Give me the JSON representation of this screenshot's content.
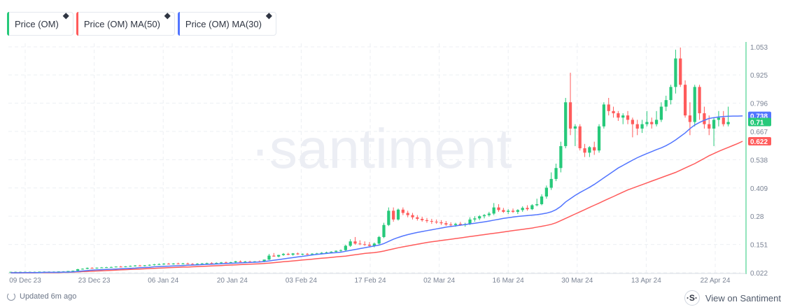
{
  "legend": [
    {
      "label": "Price (OM)",
      "color": "#26c97a"
    },
    {
      "label": "Price (OM) MA(50)",
      "color": "#ff5b5b"
    },
    {
      "label": "Price (OM) MA(30)",
      "color": "#5275ff"
    }
  ],
  "watermark": "·santiment",
  "footer": {
    "updated": "Updated 6m ago",
    "view_on": "View on Santiment",
    "logo": "·S·"
  },
  "chart_data": {
    "type": "candlestick",
    "xlabels": [
      "09 Dec 23",
      "23 Dec 23",
      "06 Jan 24",
      "20 Jan 24",
      "03 Feb 24",
      "17 Feb 24",
      "02 Mar 24",
      "16 Mar 24",
      "30 Mar 24",
      "13 Apr 24",
      "22 Apr 24"
    ],
    "ytick_labels": [
      "1.053",
      "0.925",
      "0.796",
      "0.667",
      "0.538",
      "0.409",
      "0.28",
      "0.151",
      "0.022"
    ],
    "ylim": [
      0.022,
      1.053
    ],
    "last_values": {
      "ma30": "0.738",
      "price": "0.71",
      "ma50": "0.622"
    },
    "colors": {
      "up": "#26c97a",
      "down": "#ff5b5b",
      "ma30": "#5275ff",
      "ma50": "#ff5b5b",
      "axis": "#26c97a"
    },
    "candles": [
      [
        0.025,
        0.026,
        0.024,
        0.026
      ],
      [
        0.026,
        0.027,
        0.025,
        0.026
      ],
      [
        0.026,
        0.027,
        0.025,
        0.026
      ],
      [
        0.026,
        0.027,
        0.025,
        0.026
      ],
      [
        0.026,
        0.027,
        0.025,
        0.026
      ],
      [
        0.026,
        0.027,
        0.025,
        0.026
      ],
      [
        0.026,
        0.027,
        0.025,
        0.027
      ],
      [
        0.027,
        0.028,
        0.026,
        0.027
      ],
      [
        0.027,
        0.028,
        0.026,
        0.027
      ],
      [
        0.027,
        0.028,
        0.026,
        0.027
      ],
      [
        0.027,
        0.028,
        0.026,
        0.028
      ],
      [
        0.028,
        0.029,
        0.027,
        0.028
      ],
      [
        0.028,
        0.03,
        0.027,
        0.03
      ],
      [
        0.03,
        0.032,
        0.029,
        0.031
      ],
      [
        0.031,
        0.04,
        0.03,
        0.038
      ],
      [
        0.038,
        0.042,
        0.036,
        0.04
      ],
      [
        0.04,
        0.046,
        0.038,
        0.044
      ],
      [
        0.044,
        0.047,
        0.041,
        0.043
      ],
      [
        0.043,
        0.046,
        0.04,
        0.045
      ],
      [
        0.045,
        0.048,
        0.043,
        0.046
      ],
      [
        0.046,
        0.049,
        0.044,
        0.047
      ],
      [
        0.047,
        0.05,
        0.045,
        0.048
      ],
      [
        0.048,
        0.051,
        0.046,
        0.05
      ],
      [
        0.05,
        0.053,
        0.047,
        0.049
      ],
      [
        0.049,
        0.052,
        0.047,
        0.051
      ],
      [
        0.051,
        0.055,
        0.049,
        0.053
      ],
      [
        0.053,
        0.057,
        0.05,
        0.055
      ],
      [
        0.055,
        0.058,
        0.052,
        0.054
      ],
      [
        0.054,
        0.057,
        0.051,
        0.056
      ],
      [
        0.056,
        0.06,
        0.053,
        0.058
      ],
      [
        0.058,
        0.062,
        0.055,
        0.06
      ],
      [
        0.06,
        0.065,
        0.057,
        0.061
      ],
      [
        0.061,
        0.066,
        0.058,
        0.063
      ],
      [
        0.063,
        0.067,
        0.06,
        0.062
      ],
      [
        0.062,
        0.066,
        0.059,
        0.064
      ],
      [
        0.064,
        0.068,
        0.061,
        0.063
      ],
      [
        0.063,
        0.067,
        0.06,
        0.064
      ],
      [
        0.064,
        0.068,
        0.061,
        0.062
      ],
      [
        0.062,
        0.066,
        0.059,
        0.061
      ],
      [
        0.061,
        0.066,
        0.058,
        0.063
      ],
      [
        0.063,
        0.067,
        0.06,
        0.064
      ],
      [
        0.064,
        0.068,
        0.061,
        0.066
      ],
      [
        0.066,
        0.07,
        0.063,
        0.065
      ],
      [
        0.065,
        0.069,
        0.062,
        0.067
      ],
      [
        0.067,
        0.071,
        0.064,
        0.069
      ],
      [
        0.069,
        0.073,
        0.066,
        0.068
      ],
      [
        0.068,
        0.072,
        0.065,
        0.07
      ],
      [
        0.07,
        0.076,
        0.067,
        0.074
      ],
      [
        0.074,
        0.078,
        0.07,
        0.072
      ],
      [
        0.072,
        0.076,
        0.069,
        0.073
      ],
      [
        0.073,
        0.077,
        0.07,
        0.071
      ],
      [
        0.071,
        0.075,
        0.068,
        0.074
      ],
      [
        0.074,
        0.078,
        0.071,
        0.072
      ],
      [
        0.072,
        0.08,
        0.07,
        0.082
      ],
      [
        0.082,
        0.108,
        0.08,
        0.1
      ],
      [
        0.1,
        0.112,
        0.095,
        0.096
      ],
      [
        0.096,
        0.104,
        0.092,
        0.103
      ],
      [
        0.103,
        0.112,
        0.099,
        0.108
      ],
      [
        0.108,
        0.113,
        0.102,
        0.104
      ],
      [
        0.104,
        0.112,
        0.1,
        0.11
      ],
      [
        0.11,
        0.114,
        0.104,
        0.106
      ],
      [
        0.106,
        0.11,
        0.102,
        0.108
      ],
      [
        0.108,
        0.112,
        0.103,
        0.107
      ],
      [
        0.107,
        0.111,
        0.103,
        0.109
      ],
      [
        0.109,
        0.113,
        0.105,
        0.11
      ],
      [
        0.11,
        0.116,
        0.106,
        0.113
      ],
      [
        0.113,
        0.118,
        0.108,
        0.115
      ],
      [
        0.115,
        0.12,
        0.11,
        0.118
      ],
      [
        0.118,
        0.124,
        0.113,
        0.122
      ],
      [
        0.122,
        0.128,
        0.117,
        0.125
      ],
      [
        0.125,
        0.15,
        0.12,
        0.145
      ],
      [
        0.145,
        0.175,
        0.14,
        0.165
      ],
      [
        0.165,
        0.185,
        0.15,
        0.155
      ],
      [
        0.155,
        0.17,
        0.148,
        0.152
      ],
      [
        0.152,
        0.165,
        0.145,
        0.15
      ],
      [
        0.15,
        0.162,
        0.14,
        0.145
      ],
      [
        0.145,
        0.16,
        0.138,
        0.155
      ],
      [
        0.155,
        0.19,
        0.15,
        0.185
      ],
      [
        0.185,
        0.25,
        0.18,
        0.24
      ],
      [
        0.24,
        0.32,
        0.235,
        0.305
      ],
      [
        0.305,
        0.32,
        0.255,
        0.265
      ],
      [
        0.265,
        0.315,
        0.26,
        0.31
      ],
      [
        0.31,
        0.32,
        0.285,
        0.295
      ],
      [
        0.295,
        0.305,
        0.275,
        0.285
      ],
      [
        0.285,
        0.295,
        0.265,
        0.275
      ],
      [
        0.275,
        0.285,
        0.26,
        0.268
      ],
      [
        0.268,
        0.278,
        0.255,
        0.262
      ],
      [
        0.262,
        0.272,
        0.25,
        0.258
      ],
      [
        0.258,
        0.268,
        0.245,
        0.255
      ],
      [
        0.255,
        0.265,
        0.245,
        0.252
      ],
      [
        0.252,
        0.262,
        0.24,
        0.248
      ],
      [
        0.248,
        0.258,
        0.236,
        0.242
      ],
      [
        0.242,
        0.252,
        0.234,
        0.24
      ],
      [
        0.24,
        0.25,
        0.232,
        0.245
      ],
      [
        0.245,
        0.254,
        0.236,
        0.24
      ],
      [
        0.24,
        0.25,
        0.232,
        0.244
      ],
      [
        0.244,
        0.275,
        0.24,
        0.265
      ],
      [
        0.265,
        0.28,
        0.255,
        0.27
      ],
      [
        0.27,
        0.285,
        0.262,
        0.28
      ],
      [
        0.28,
        0.29,
        0.27,
        0.285
      ],
      [
        0.285,
        0.3,
        0.278,
        0.292
      ],
      [
        0.292,
        0.34,
        0.285,
        0.32
      ],
      [
        0.32,
        0.335,
        0.3,
        0.308
      ],
      [
        0.308,
        0.318,
        0.295,
        0.3
      ],
      [
        0.3,
        0.312,
        0.29,
        0.305
      ],
      [
        0.305,
        0.315,
        0.295,
        0.3
      ],
      [
        0.3,
        0.312,
        0.29,
        0.308
      ],
      [
        0.308,
        0.325,
        0.3,
        0.318
      ],
      [
        0.318,
        0.33,
        0.305,
        0.312
      ],
      [
        0.312,
        0.335,
        0.308,
        0.33
      ],
      [
        0.33,
        0.36,
        0.325,
        0.335
      ],
      [
        0.335,
        0.38,
        0.33,
        0.37
      ],
      [
        0.37,
        0.42,
        0.36,
        0.41
      ],
      [
        0.41,
        0.48,
        0.4,
        0.45
      ],
      [
        0.45,
        0.52,
        0.44,
        0.5
      ],
      [
        0.5,
        0.62,
        0.48,
        0.6
      ],
      [
        0.6,
        0.82,
        0.59,
        0.8
      ],
      [
        0.8,
        0.935,
        0.65,
        0.68
      ],
      [
        0.68,
        0.7,
        0.6,
        0.69
      ],
      [
        0.69,
        0.7,
        0.58,
        0.59
      ],
      [
        0.59,
        0.61,
        0.55,
        0.57
      ],
      [
        0.57,
        0.6,
        0.55,
        0.595
      ],
      [
        0.595,
        0.62,
        0.56,
        0.58
      ],
      [
        0.58,
        0.7,
        0.57,
        0.69
      ],
      [
        0.69,
        0.8,
        0.68,
        0.79
      ],
      [
        0.79,
        0.82,
        0.74,
        0.76
      ],
      [
        0.76,
        0.78,
        0.73,
        0.75
      ],
      [
        0.75,
        0.76,
        0.715,
        0.73
      ],
      [
        0.73,
        0.75,
        0.7,
        0.74
      ],
      [
        0.74,
        0.76,
        0.7,
        0.72
      ],
      [
        0.72,
        0.73,
        0.64,
        0.7
      ],
      [
        0.7,
        0.72,
        0.65,
        0.68
      ],
      [
        0.68,
        0.72,
        0.66,
        0.7
      ],
      [
        0.7,
        0.76,
        0.69,
        0.71
      ],
      [
        0.71,
        0.73,
        0.68,
        0.7
      ],
      [
        0.7,
        0.76,
        0.69,
        0.72
      ],
      [
        0.72,
        0.8,
        0.71,
        0.78
      ],
      [
        0.78,
        0.83,
        0.76,
        0.81
      ],
      [
        0.81,
        0.88,
        0.79,
        0.87
      ],
      [
        0.87,
        1.04,
        0.84,
        1.0
      ],
      [
        1.0,
        1.05,
        0.87,
        0.88
      ],
      [
        0.88,
        0.9,
        0.73,
        0.74
      ],
      [
        0.74,
        0.8,
        0.65,
        0.71
      ],
      [
        0.71,
        0.88,
        0.69,
        0.87
      ],
      [
        0.87,
        0.88,
        0.72,
        0.75
      ],
      [
        0.75,
        0.78,
        0.68,
        0.7
      ],
      [
        0.7,
        0.74,
        0.65,
        0.68
      ],
      [
        0.68,
        0.73,
        0.6,
        0.72
      ],
      [
        0.72,
        0.76,
        0.69,
        0.73
      ],
      [
        0.73,
        0.76,
        0.69,
        0.7
      ],
      [
        0.7,
        0.78,
        0.69,
        0.71
      ]
    ],
    "ma50": [
      0.022,
      0.022,
      0.022,
      0.022,
      0.022,
      0.022,
      0.023,
      0.023,
      0.023,
      0.023,
      0.023,
      0.024,
      0.024,
      0.025,
      0.026,
      0.027,
      0.028,
      0.029,
      0.03,
      0.031,
      0.032,
      0.033,
      0.034,
      0.035,
      0.036,
      0.037,
      0.038,
      0.039,
      0.04,
      0.041,
      0.042,
      0.043,
      0.044,
      0.045,
      0.046,
      0.047,
      0.048,
      0.048,
      0.049,
      0.05,
      0.051,
      0.052,
      0.053,
      0.054,
      0.055,
      0.056,
      0.057,
      0.058,
      0.059,
      0.06,
      0.061,
      0.062,
      0.063,
      0.064,
      0.066,
      0.068,
      0.07,
      0.072,
      0.074,
      0.076,
      0.078,
      0.08,
      0.082,
      0.084,
      0.086,
      0.088,
      0.09,
      0.092,
      0.094,
      0.096,
      0.098,
      0.101,
      0.104,
      0.107,
      0.11,
      0.112,
      0.114,
      0.117,
      0.121,
      0.126,
      0.131,
      0.136,
      0.14,
      0.144,
      0.148,
      0.152,
      0.156,
      0.16,
      0.163,
      0.166,
      0.169,
      0.172,
      0.175,
      0.178,
      0.181,
      0.184,
      0.187,
      0.19,
      0.193,
      0.196,
      0.199,
      0.202,
      0.205,
      0.208,
      0.211,
      0.214,
      0.217,
      0.22,
      0.223,
      0.226,
      0.23,
      0.234,
      0.238,
      0.243,
      0.25,
      0.26,
      0.27,
      0.28,
      0.29,
      0.3,
      0.31,
      0.32,
      0.33,
      0.34,
      0.35,
      0.36,
      0.37,
      0.38,
      0.39,
      0.4,
      0.408,
      0.416,
      0.424,
      0.432,
      0.44,
      0.448,
      0.456,
      0.464,
      0.472,
      0.48,
      0.49,
      0.5,
      0.51,
      0.52,
      0.532,
      0.544,
      0.556,
      0.566,
      0.576,
      0.585,
      0.594,
      0.603,
      0.612,
      0.622
    ],
    "ma30": [
      0.022,
      0.022,
      0.022,
      0.023,
      0.023,
      0.023,
      0.023,
      0.024,
      0.024,
      0.024,
      0.024,
      0.025,
      0.025,
      0.026,
      0.028,
      0.03,
      0.032,
      0.034,
      0.035,
      0.036,
      0.037,
      0.038,
      0.039,
      0.04,
      0.041,
      0.042,
      0.043,
      0.045,
      0.046,
      0.047,
      0.049,
      0.05,
      0.051,
      0.052,
      0.053,
      0.054,
      0.055,
      0.056,
      0.057,
      0.058,
      0.059,
      0.06,
      0.061,
      0.062,
      0.063,
      0.064,
      0.065,
      0.066,
      0.067,
      0.068,
      0.069,
      0.07,
      0.071,
      0.073,
      0.076,
      0.079,
      0.082,
      0.085,
      0.088,
      0.091,
      0.094,
      0.097,
      0.1,
      0.103,
      0.106,
      0.108,
      0.11,
      0.112,
      0.114,
      0.116,
      0.12,
      0.124,
      0.128,
      0.132,
      0.136,
      0.14,
      0.144,
      0.148,
      0.155,
      0.165,
      0.175,
      0.183,
      0.19,
      0.196,
      0.201,
      0.206,
      0.21,
      0.214,
      0.218,
      0.222,
      0.226,
      0.23,
      0.233,
      0.236,
      0.239,
      0.242,
      0.245,
      0.248,
      0.251,
      0.254,
      0.258,
      0.262,
      0.266,
      0.27,
      0.273,
      0.276,
      0.279,
      0.281,
      0.283,
      0.285,
      0.287,
      0.29,
      0.294,
      0.3,
      0.31,
      0.325,
      0.345,
      0.36,
      0.375,
      0.388,
      0.4,
      0.412,
      0.425,
      0.44,
      0.455,
      0.47,
      0.485,
      0.5,
      0.512,
      0.524,
      0.536,
      0.547,
      0.557,
      0.566,
      0.575,
      0.584,
      0.592,
      0.602,
      0.614,
      0.628,
      0.644,
      0.66,
      0.68,
      0.696,
      0.708,
      0.718,
      0.726,
      0.73,
      0.733,
      0.735,
      0.736,
      0.737,
      0.737,
      0.738
    ]
  }
}
